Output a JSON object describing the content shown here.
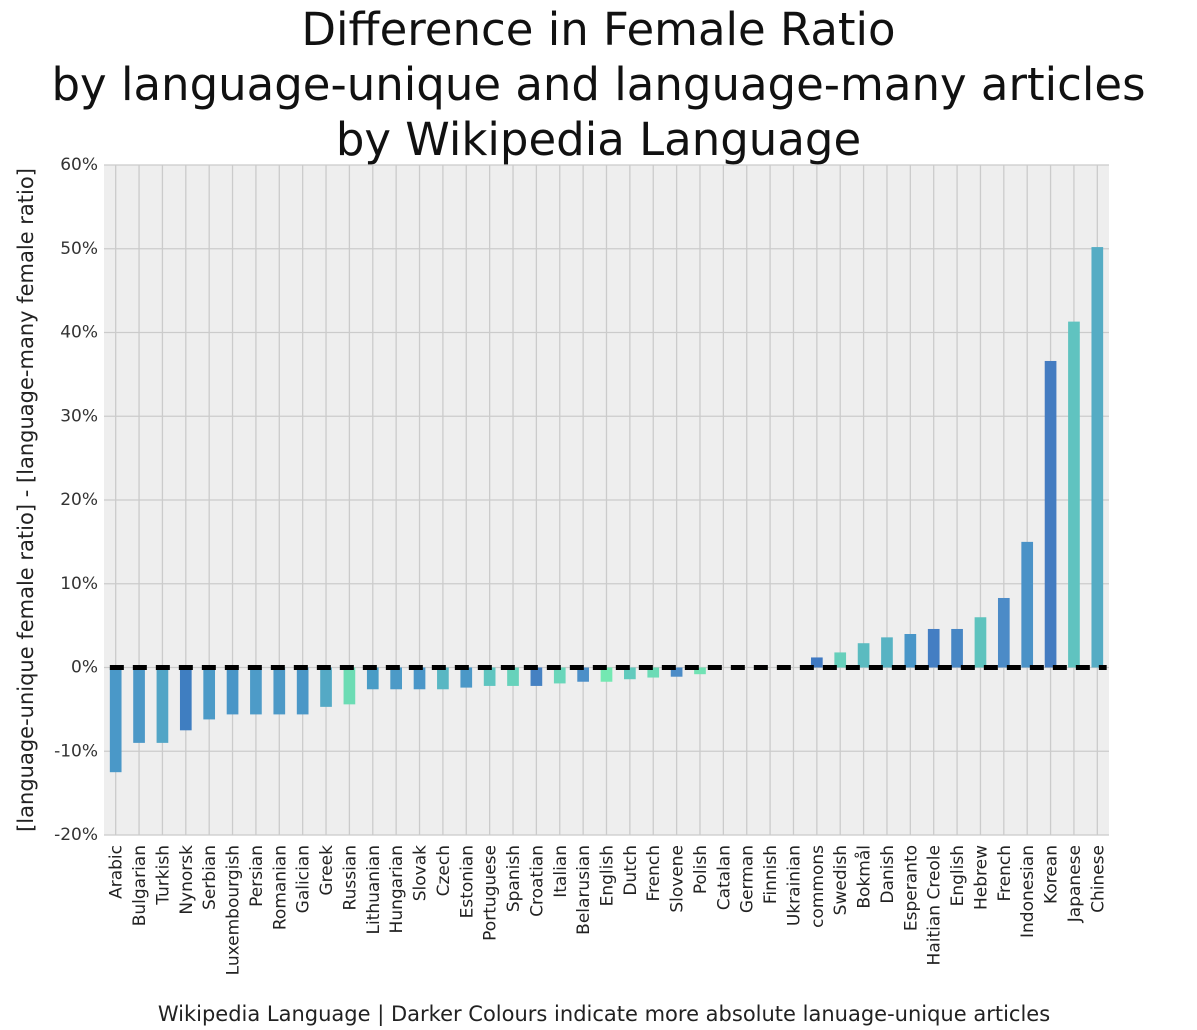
{
  "chart_data": {
    "type": "bar",
    "title_lines": [
      "Difference in Female Ratio",
      "by language-unique and language-many articles",
      "by Wikipedia Language"
    ],
    "xlabel": "Wikipedia Language | Darker Colours indicate more absolute lanuage-unique articles",
    "ylabel": "[language-unique female ratio] - [language-many female ratio]",
    "ylim": [
      -20,
      60
    ],
    "yticks": [
      -20,
      -10,
      0,
      10,
      20,
      30,
      40,
      50,
      60
    ],
    "ytick_labels": [
      "-20%",
      "-10%",
      "0%",
      "10%",
      "20%",
      "30%",
      "40%",
      "50%",
      "60%"
    ],
    "grid": true,
    "reference_line": {
      "y": 0,
      "style": "dashed",
      "color": "#000000"
    },
    "categories": [
      "Arabic",
      "Bulgarian",
      "Turkish",
      "Nynorsk",
      "Serbian",
      "Luxembourgish",
      "Persian",
      "Romanian",
      "Galician",
      "Greek",
      "Russian",
      "Lithuanian",
      "Hungarian",
      "Slovak",
      "Czech",
      "Estonian",
      "Portuguese",
      "Spanish",
      "Croatian",
      "Italian",
      "Belarusian",
      "English",
      "Dutch",
      "French",
      "Slovene",
      "Polish",
      "Catalan",
      "German",
      "Finnish",
      "Ukrainian",
      "commons",
      "Swedish",
      "Bokmål",
      "Danish",
      "Esperanto",
      "Haitian Creole",
      "English",
      "Hebrew",
      "French",
      "Indonesian",
      "Korean",
      "Japanese",
      "Chinese"
    ],
    "values": [
      -12.5,
      -9.0,
      -9.0,
      -7.5,
      -6.2,
      -5.6,
      -5.6,
      -5.6,
      -5.6,
      -4.7,
      -4.4,
      -2.6,
      -2.6,
      -2.6,
      -2.6,
      -2.4,
      -2.2,
      -2.2,
      -2.2,
      -1.9,
      -1.7,
      -1.7,
      -1.4,
      -1.2,
      -1.1,
      -0.8,
      0.0,
      0.0,
      0.0,
      0.0,
      1.2,
      1.8,
      2.9,
      3.6,
      4.0,
      4.6,
      4.6,
      6.0,
      8.3,
      15.0,
      36.6,
      41.3,
      50.2
    ],
    "colors": [
      "#4a98c8",
      "#4b98c7",
      "#52a5c6",
      "#3f7ec1",
      "#4c9ac7",
      "#4a96c7",
      "#4d9bc8",
      "#4c99c7",
      "#4a97c7",
      "#54a9c5",
      "#6cdcb4",
      "#499cc6",
      "#4c9ac7",
      "#4a96c8",
      "#59b7c3",
      "#4b98c7",
      "#5fc5c0",
      "#67d2bb",
      "#4581c2",
      "#69d6ba",
      "#4c8fc8",
      "#74e8b2",
      "#61cabd",
      "#6cdbb6",
      "#4c8cc7",
      "#71e2b4",
      "#7fe7c0",
      "#7fe7c0",
      "#7fe7c0",
      "#7fe7c0",
      "#3f79c2",
      "#66cfbb",
      "#5bbbc0",
      "#57b3c3",
      "#4996c8",
      "#447ec3",
      "#4786c4",
      "#5ec3be",
      "#4c8bc7",
      "#4a92c7",
      "#447cc1",
      "#60c3c0",
      "#55acc4"
    ]
  }
}
